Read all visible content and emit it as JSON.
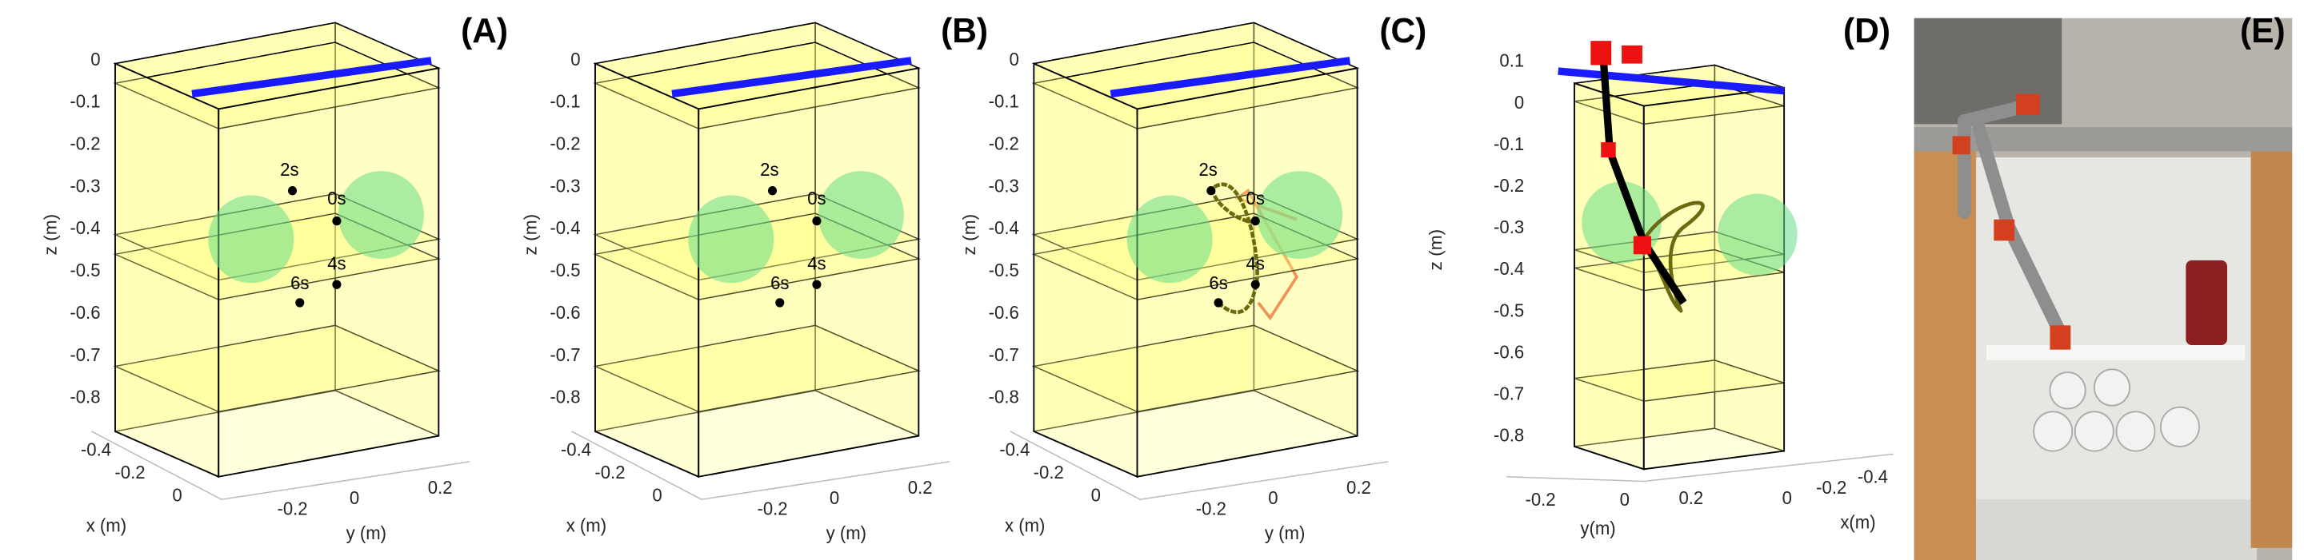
{
  "panels": [
    {
      "label": "(A)",
      "z_axis_label": "z (m)",
      "z_ticks": [
        "0",
        "-0.1",
        "-0.2",
        "-0.3",
        "-0.4",
        "-0.5",
        "-0.6",
        "-0.7",
        "-0.8"
      ],
      "x_axis_label": "x (m)",
      "x_ticks": [
        "-0.4",
        "-0.2",
        "0"
      ],
      "y_axis_label": "y (m)",
      "y_ticks": [
        "-0.2",
        "0",
        "0.2"
      ],
      "time_labels": [
        "2s",
        "0s",
        "4s",
        "6s"
      ]
    },
    {
      "label": "(B)",
      "z_axis_label": "z (m)",
      "z_ticks": [
        "0",
        "-0.1",
        "-0.2",
        "-0.3",
        "-0.4",
        "-0.5",
        "-0.6",
        "-0.7",
        "-0.8"
      ],
      "x_axis_label": "x (m)",
      "x_ticks": [
        "-0.4",
        "-0.2",
        "0"
      ],
      "y_axis_label": "y (m)",
      "y_ticks": [
        "-0.2",
        "0",
        "0.2"
      ],
      "time_labels": [
        "2s",
        "0s",
        "4s",
        "6s"
      ]
    },
    {
      "label": "(C)",
      "z_axis_label": "z (m)",
      "z_ticks": [
        "0",
        "-0.1",
        "-0.2",
        "-0.3",
        "-0.4",
        "-0.5",
        "-0.6",
        "-0.7",
        "-0.8"
      ],
      "x_axis_label": "x (m)",
      "x_ticks": [
        "-0.4",
        "-0.2",
        "0"
      ],
      "y_axis_label": "y (m)",
      "y_ticks": [
        "-0.2",
        "0",
        "0.2"
      ],
      "time_labels": [
        "2s",
        "0s",
        "4s",
        "6s"
      ]
    },
    {
      "label": "(D)",
      "z_axis_label": "z (m)",
      "z_ticks": [
        "0.1",
        "0",
        "-0.1",
        "-0.2",
        "-0.3",
        "-0.4",
        "-0.5",
        "-0.6",
        "-0.7",
        "-0.8"
      ],
      "x_axis_label": "x(m)",
      "x_ticks": [
        "0",
        "-0.2",
        "-0.4"
      ],
      "y_axis_label": "y(m)",
      "y_ticks": [
        "-0.2",
        "0",
        "0.2"
      ]
    },
    {
      "label": "(E)"
    }
  ]
}
